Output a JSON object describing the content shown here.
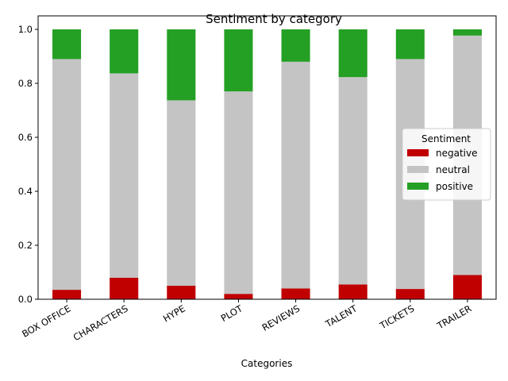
{
  "chart_data": {
    "type": "bar",
    "stacked": true,
    "title": "Sentiment by category",
    "xlabel": "Categories",
    "ylabel": "",
    "ylim": [
      0,
      1.05
    ],
    "yticks": [
      "0.0",
      "0.2",
      "0.4",
      "0.6",
      "0.8",
      "1.0"
    ],
    "ytick_values": [
      0,
      0.2,
      0.4,
      0.6,
      0.8,
      1.0
    ],
    "categories": [
      "BOX OFFICE",
      "CHARACTERS",
      "HYPE",
      "PLOT",
      "REVIEWS",
      "TALENT",
      "TICKETS",
      "TRAILER"
    ],
    "legend_title": "Sentiment",
    "legend_position": "center-right",
    "grid": false,
    "series": [
      {
        "name": "negative",
        "color": "#c00000",
        "values": [
          0.035,
          0.08,
          0.05,
          0.02,
          0.04,
          0.055,
          0.038,
          0.09
        ]
      },
      {
        "name": "neutral",
        "color": "#c4c4c4",
        "values": [
          0.855,
          0.757,
          0.687,
          0.75,
          0.84,
          0.768,
          0.852,
          0.887
        ]
      },
      {
        "name": "positive",
        "color": "#24a024",
        "values": [
          0.11,
          0.163,
          0.263,
          0.23,
          0.12,
          0.177,
          0.11,
          0.023
        ]
      }
    ]
  }
}
